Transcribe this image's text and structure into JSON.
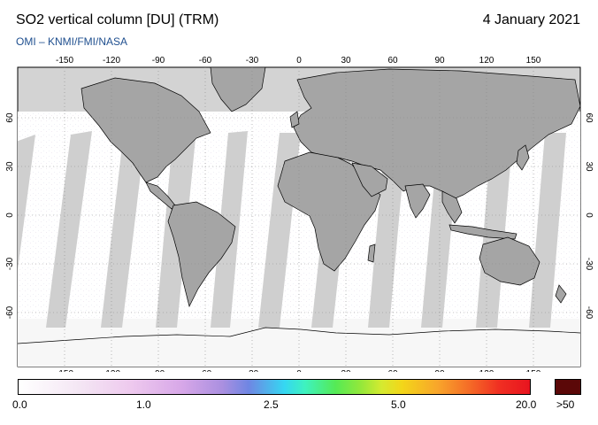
{
  "header": {
    "title": "SO2 vertical column [DU] (TRM)",
    "credit": "OMI  –  KNMI/FMI/NASA",
    "date": "4 January 2021"
  },
  "map": {
    "lon_ticks": [
      "-150",
      "-120",
      "-90",
      "-60",
      "-30",
      "0",
      "30",
      "60",
      "90",
      "120",
      "150"
    ],
    "lat_ticks": [
      "60",
      "30",
      "0",
      "-30",
      "-60"
    ],
    "colors": {
      "background": "#d3d3d3",
      "land": "#a6a6a6",
      "ocean_data": "#ffffff"
    }
  },
  "colorbar": {
    "labels": [
      "0.0",
      "1.0",
      "2.5",
      "5.0",
      "20.0"
    ],
    "over_label": ">50",
    "over_color": "#5b0808"
  }
}
